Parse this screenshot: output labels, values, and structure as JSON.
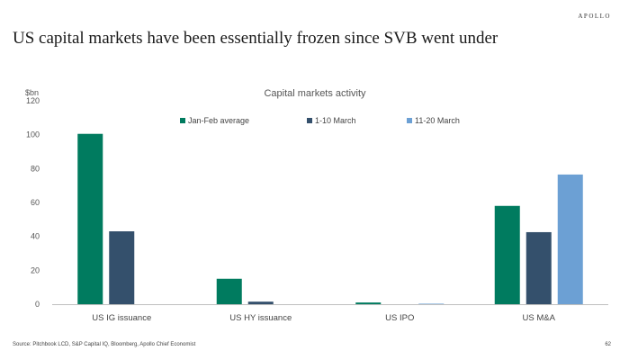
{
  "header": {
    "brand": "APOLLO",
    "title": "US capital markets have been essentially frozen since SVB went under"
  },
  "footer": {
    "source": "Source: Pitchbook LCD, S&P Capital IQ, Bloomberg, Apollo Chief Economist",
    "page": "62"
  },
  "chart_data": {
    "type": "bar",
    "title": "Capital markets activity",
    "unit_label": "$bn",
    "xlabel": "",
    "ylabel": "",
    "ylim": [
      0,
      120
    ],
    "yticks": [
      0,
      20,
      40,
      60,
      80,
      100,
      120
    ],
    "grid": false,
    "legend_position": "top",
    "categories": [
      "US IG issuance",
      "US HY issuance",
      "US IPO",
      "US M&A"
    ],
    "series": [
      {
        "name": "Jan-Feb average",
        "color": "#007b5f",
        "values": [
          100.5,
          15,
          1,
          58
        ]
      },
      {
        "name": "1-10 March",
        "color": "#34506c",
        "values": [
          43,
          1.5,
          0,
          42.5
        ]
      },
      {
        "name": "11-20 March",
        "color": "#6ca0d4",
        "values": [
          0,
          0,
          0.3,
          76.5
        ]
      }
    ]
  }
}
